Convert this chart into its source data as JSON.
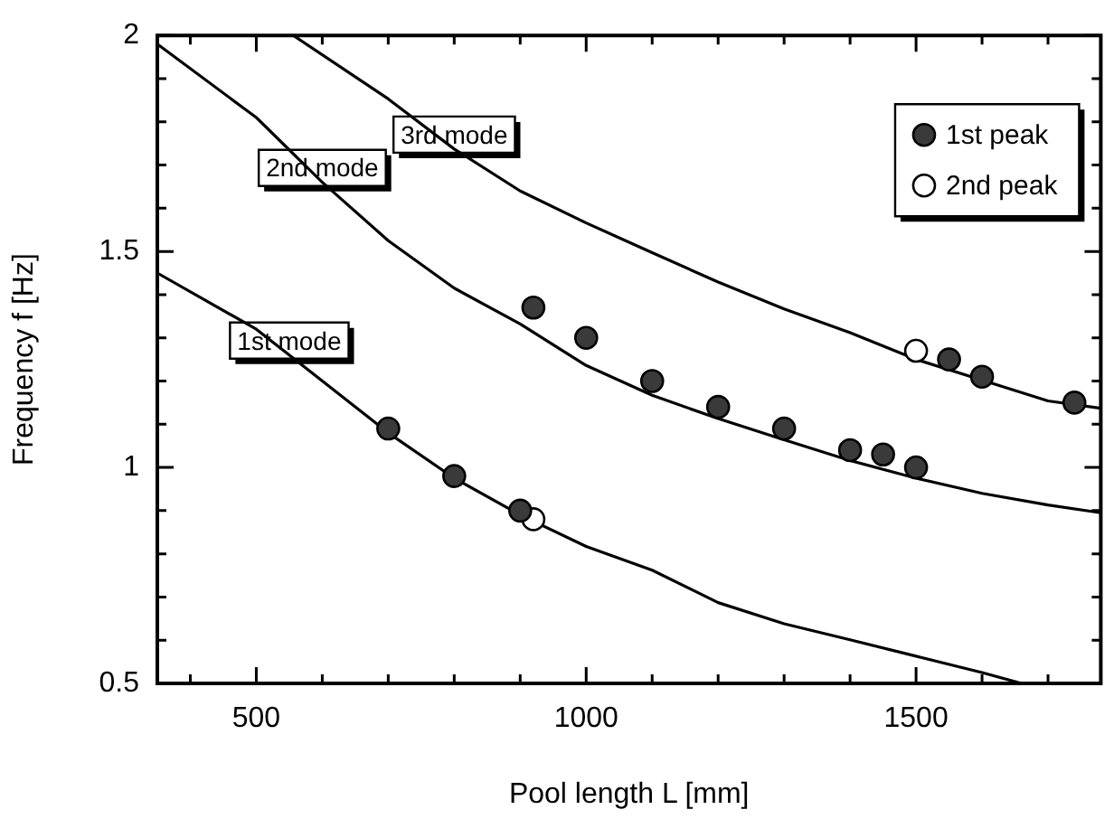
{
  "chart_data": {
    "type": "scatter",
    "xlabel": "Pool length L [mm]",
    "ylabel": "Frequency f [Hz]",
    "xlim": [
      350,
      1780
    ],
    "ylim": [
      0.5,
      2
    ],
    "xticks": [
      {
        "value": 400,
        "label": null
      },
      500,
      {
        "value": 600,
        "label": null
      },
      {
        "value": 700,
        "label": null
      },
      {
        "value": 800,
        "label": null
      },
      {
        "value": 900,
        "label": null
      },
      1000,
      {
        "value": 1100,
        "label": null
      },
      {
        "value": 1200,
        "label": null
      },
      {
        "value": 1300,
        "label": null
      },
      {
        "value": 1400,
        "label": null
      },
      1500,
      {
        "value": 1600,
        "label": null
      },
      {
        "value": 1700,
        "label": null
      }
    ],
    "yticks": [
      0.5,
      {
        "value": 0.6,
        "label": null
      },
      {
        "value": 0.7,
        "label": null
      },
      {
        "value": 0.8,
        "label": null
      },
      {
        "value": 0.9,
        "label": null
      },
      1,
      {
        "value": 1.1,
        "label": null
      },
      {
        "value": 1.2,
        "label": null
      },
      {
        "value": 1.3,
        "label": null
      },
      {
        "value": 1.4,
        "label": null
      },
      1.5,
      {
        "value": 1.6,
        "label": null
      },
      {
        "value": 1.7,
        "label": null
      },
      {
        "value": 1.8,
        "label": null
      },
      {
        "value": 1.9,
        "label": null
      },
      2
    ],
    "legend": "top right",
    "annotations": [
      {
        "text": "3rd mode",
        "x": 800,
        "y": 1.737
      },
      {
        "text": "2nd mode",
        "x": 600,
        "y": 1.66
      },
      {
        "text": "1st mode",
        "x": 550,
        "y": 1.26
      }
    ],
    "series": [
      {
        "type": "line",
        "marker": "none",
        "color": "#000000",
        "x": [
          350,
          500,
          550,
          700,
          800,
          900,
          1000,
          1100,
          1200,
          1300,
          1400,
          1500,
          1600,
          1660
        ],
        "values": [
          1.45,
          1.32,
          1.26,
          1.08,
          0.975,
          0.89,
          0.817,
          0.762,
          0.687,
          0.638,
          0.601,
          0.563,
          0.525,
          0.5
        ]
      },
      {
        "type": "line",
        "marker": "none",
        "color": "#000000",
        "x": [
          350,
          500,
          600,
          700,
          800,
          900,
          1000,
          1100,
          1200,
          1300,
          1400,
          1500,
          1600,
          1700,
          1780
        ],
        "values": [
          1.98,
          1.81,
          1.66,
          1.525,
          1.415,
          1.332,
          1.236,
          1.167,
          1.113,
          1.064,
          1.016,
          0.975,
          0.94,
          0.913,
          0.895
        ]
      },
      {
        "type": "line",
        "marker": "none",
        "color": "#000000",
        "x": [
          556,
          700,
          800,
          900,
          1000,
          1100,
          1200,
          1300,
          1400,
          1500,
          1600,
          1700,
          1780
        ],
        "values": [
          2,
          1.853,
          1.737,
          1.64,
          1.566,
          1.497,
          1.429,
          1.367,
          1.312,
          1.25,
          1.202,
          1.154,
          1.137
        ]
      },
      {
        "type": "scatter",
        "marker": "circle",
        "name": "1st peak",
        "color": "#3a3a3a",
        "x": [
          700,
          800,
          900,
          920,
          1000,
          1100,
          1200,
          1300,
          1400,
          1450,
          1500,
          1550,
          1600,
          1740
        ],
        "values": [
          1.09,
          0.98,
          0.9,
          1.37,
          1.3,
          1.2,
          1.14,
          1.09,
          1.04,
          1.03,
          1.0,
          1.25,
          1.21,
          1.15
        ]
      },
      {
        "type": "scatter",
        "marker": "circle",
        "name": "2nd peak",
        "color": "#ffffff",
        "x": [
          920,
          1500
        ],
        "values": [
          0.88,
          1.27
        ]
      }
    ]
  }
}
